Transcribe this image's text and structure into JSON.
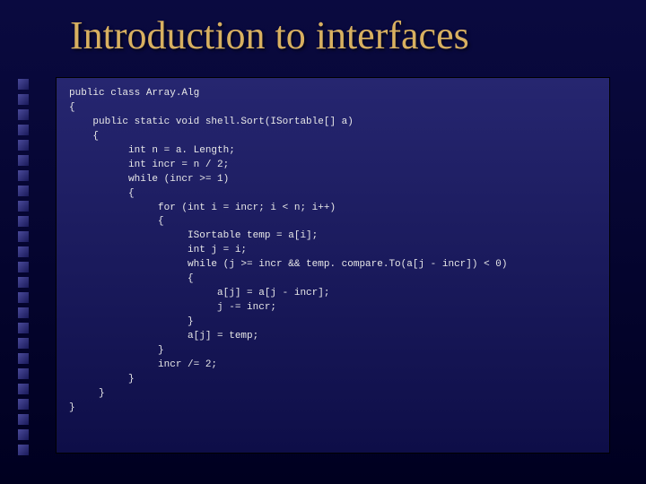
{
  "slide": {
    "title": "Introduction to interfaces",
    "title_color": "#d8b060",
    "title_fontsize": 44,
    "background_gradient": [
      "#0a0a40",
      "#000020"
    ],
    "codebox_gradient": [
      "#262670",
      "#0e0e48"
    ],
    "bullet_count": 25,
    "bullet_color_gradient": [
      "#4a4a9a",
      "#1a1a5a"
    ],
    "code_font": "Courier New",
    "code_fontsize": 11,
    "code_color": "#e8e8e8",
    "code_lines": [
      "public class Array.Alg",
      "{",
      "    public static void shell.Sort(ISortable[] a)",
      "    {",
      "          int n = a. Length;",
      "          int incr = n / 2;",
      "          while (incr >= 1)",
      "          {",
      "               for (int i = incr; i < n; i++)",
      "               {",
      "                    ISortable temp = a[i];",
      "                    int j = i;",
      "                    while (j >= incr && temp. compare.To(a[j - incr]) < 0)",
      "                    {",
      "                         a[j] = a[j - incr];",
      "                         j -= incr;",
      "                    }",
      "                    a[j] = temp;",
      "               }",
      "               incr /= 2;",
      "          }",
      "     }",
      "}"
    ]
  }
}
